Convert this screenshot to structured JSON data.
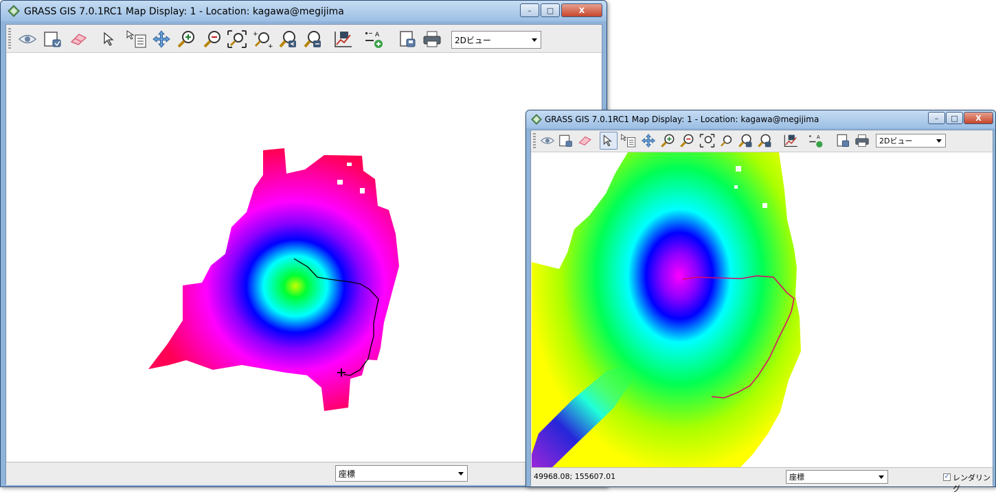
{
  "window1": {
    "title": "GRASS GIS 7.0.1RC1 Map Display: 1  - Location: kagawa@megijima",
    "view_select": "2Dビュー",
    "status_select": "座標"
  },
  "window2": {
    "title": "GRASS GIS 7.0.1RC1 Map Display: 1  - Location: kagawa@megijima",
    "view_select": "2Dビュー",
    "status_select": "座標",
    "coordinates": "49968.08; 155607.01",
    "render_label": "レンダリング",
    "render_checked": "✓"
  },
  "window_buttons": {
    "minimize": "–",
    "maximize": "□",
    "close": "X"
  },
  "toolbar_tools": [
    "display-map",
    "erase-display",
    "pointer",
    "query",
    "pan",
    "zoom-in",
    "zoom-out",
    "zoom-to-extent",
    "zoom-back",
    "zoom-menu",
    "analyze",
    "overlay",
    "save",
    "print"
  ],
  "colors": {
    "elevation_low": "#ffff00",
    "elevation_mid": "#00ff00",
    "elevation_midhigh": "#00ffff",
    "elevation_high": "#0000ff",
    "elevation_higher": "#ff00ff",
    "elevation_peak": "#ff0055",
    "route_line_w1": "#000000",
    "route_line_w2": "#e0006a"
  }
}
